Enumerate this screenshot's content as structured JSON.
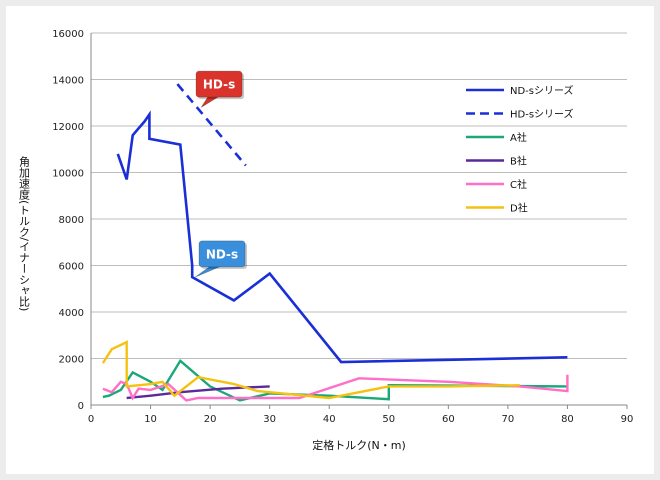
{
  "chart_data": {
    "type": "line",
    "title": "",
    "xlabel": "定格トルク(N・m)",
    "ylabel": "角加速度(トルク/イナーシャ比)",
    "xlim": [
      0,
      90
    ],
    "ylim": [
      0,
      16000
    ],
    "xticks": [
      0,
      10,
      20,
      30,
      40,
      50,
      60,
      70,
      80,
      90
    ],
    "yticks": [
      0,
      2000,
      4000,
      6000,
      8000,
      10000,
      12000,
      14000,
      16000
    ],
    "x_tick_labels": [
      "0",
      "10",
      "20",
      "30",
      "40",
      "50",
      "60",
      "70",
      "80",
      "90"
    ],
    "y_tick_labels": [
      "0",
      "2000",
      "4000",
      "6000",
      "8000",
      "10000",
      "12000",
      "14000",
      "16000"
    ],
    "grid": "horizontal",
    "legend_position": "right",
    "series": [
      {
        "name": "ND-sシリーズ",
        "color": "#1a2fd6",
        "dash": "solid",
        "points": [
          [
            4.5,
            10800
          ],
          [
            6,
            9700
          ],
          [
            7,
            11600
          ],
          [
            8,
            11900
          ],
          [
            9,
            12200
          ],
          [
            9.8,
            12500
          ],
          [
            9.8,
            11450
          ],
          [
            15,
            11200
          ],
          [
            17,
            6000
          ],
          [
            17,
            5500
          ],
          [
            24,
            4500
          ],
          [
            30,
            5650
          ],
          [
            42,
            1850
          ],
          [
            80,
            2050
          ]
        ]
      },
      {
        "name": "HD-sシリーズ",
        "color": "#1a2fd6",
        "dash": "dashed",
        "points": [
          [
            14.5,
            13800
          ],
          [
            26,
            10300
          ]
        ]
      },
      {
        "name": "A社",
        "color": "#1aa877",
        "dash": "solid",
        "points": [
          [
            2,
            350
          ],
          [
            3,
            400
          ],
          [
            5,
            650
          ],
          [
            7,
            1400
          ],
          [
            10,
            1000
          ],
          [
            12,
            650
          ],
          [
            15,
            1900
          ],
          [
            20,
            800
          ],
          [
            25,
            200
          ],
          [
            30,
            500
          ],
          [
            40,
            400
          ],
          [
            50,
            250
          ],
          [
            50,
            850
          ],
          [
            80,
            800
          ]
        ]
      },
      {
        "name": "B社",
        "color": "#5a2a9a",
        "dash": "solid",
        "points": [
          [
            6,
            300
          ],
          [
            10,
            400
          ],
          [
            15,
            550
          ],
          [
            22,
            700
          ],
          [
            30,
            800
          ]
        ]
      },
      {
        "name": "C社",
        "color": "#ff6fc8",
        "dash": "solid",
        "points": [
          [
            2,
            700
          ],
          [
            3.5,
            550
          ],
          [
            5,
            1000
          ],
          [
            6,
            900
          ],
          [
            7,
            300
          ],
          [
            8,
            700
          ],
          [
            10,
            650
          ],
          [
            13,
            900
          ],
          [
            16,
            200
          ],
          [
            18,
            300
          ],
          [
            25,
            300
          ],
          [
            35,
            300
          ],
          [
            45,
            1150
          ],
          [
            60,
            1000
          ],
          [
            72,
            800
          ],
          [
            80,
            600
          ],
          [
            80,
            1300
          ]
        ]
      },
      {
        "name": "D社",
        "color": "#f5c210",
        "dash": "solid",
        "points": [
          [
            2,
            1800
          ],
          [
            3.5,
            2400
          ],
          [
            6,
            2700
          ],
          [
            6,
            800
          ],
          [
            10,
            900
          ],
          [
            12,
            1000
          ],
          [
            14,
            400
          ],
          [
            18,
            1200
          ],
          [
            24,
            900
          ],
          [
            28,
            600
          ],
          [
            40,
            300
          ],
          [
            50,
            800
          ],
          [
            60,
            800
          ],
          [
            72,
            850
          ]
        ]
      }
    ],
    "annotations": [
      {
        "text": "HD-s",
        "color": "#d9332b",
        "anchor": [
          18.5,
          12800
        ],
        "box": [
          21.5,
          13800
        ]
      },
      {
        "text": "ND-s",
        "color": "#3a8fdc",
        "anchor": [
          17.5,
          5500
        ],
        "box": [
          22,
          6500
        ]
      }
    ]
  }
}
